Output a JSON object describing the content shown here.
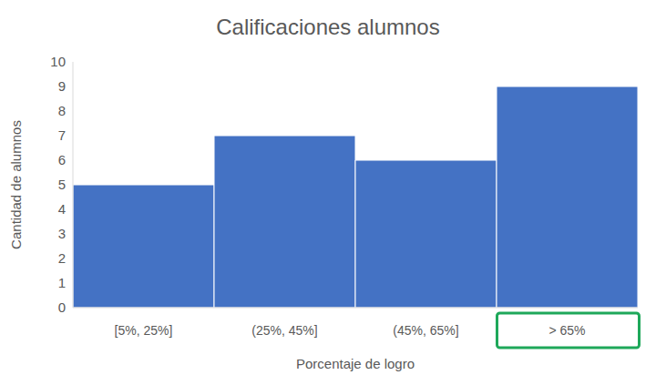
{
  "chart_data": {
    "type": "bar",
    "title": "Calificaciones alumnos",
    "x_label": "Porcentaje de logro",
    "y_label": "Cantidad de alumnos",
    "categories": [
      "[5%, 25%]",
      "(25%, 45%]",
      "(45%, 65%]",
      "> 65%"
    ],
    "values": [
      5,
      7,
      6,
      9
    ],
    "color": "#4472c4",
    "ylim": [
      0,
      10
    ],
    "yticks": [
      0,
      1,
      2,
      3,
      4,
      5,
      6,
      7,
      8,
      9,
      10
    ],
    "grid": false
  }
}
